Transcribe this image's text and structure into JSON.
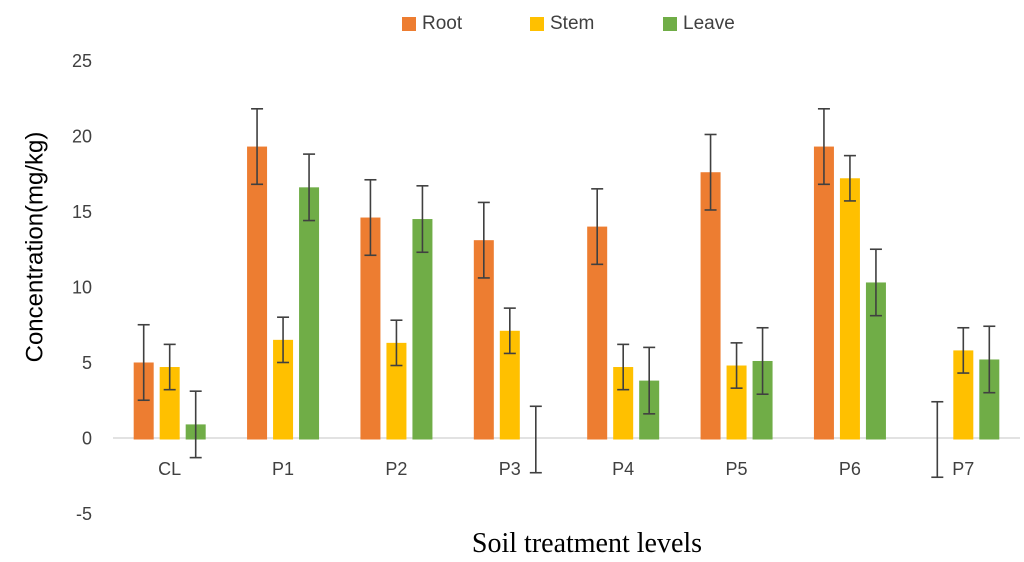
{
  "chart_data": {
    "type": "bar",
    "title": "",
    "xlabel": "Soil treatment levels",
    "ylabel": "Concentration(mg/kg)",
    "ylim": [
      -5,
      25
    ],
    "yticks": [
      -5,
      0,
      5,
      10,
      15,
      20,
      25
    ],
    "grid": false,
    "legend_position": "top",
    "categories": [
      "CL",
      "P1",
      "P2",
      "P3",
      "P4",
      "P5",
      "P6",
      "P7"
    ],
    "series": [
      {
        "name": "Root",
        "color": "#ED7D31",
        "values": [
          5.1,
          19.4,
          14.7,
          13.2,
          14.1,
          17.7,
          19.4,
          0
        ],
        "errors": [
          2.5,
          2.5,
          2.5,
          2.5,
          2.5,
          2.5,
          2.5,
          2.5
        ]
      },
      {
        "name": "Stem",
        "color": "#FFC000",
        "values": [
          4.8,
          6.6,
          6.4,
          7.2,
          4.8,
          4.9,
          17.3,
          5.9
        ],
        "errors": [
          1.5,
          1.5,
          1.5,
          1.5,
          1.5,
          1.5,
          1.5,
          1.5
        ]
      },
      {
        "name": "Leave",
        "color": "#70AD47",
        "values": [
          1.0,
          16.7,
          14.6,
          0,
          3.9,
          5.2,
          10.4,
          5.3
        ],
        "errors": [
          2.2,
          2.2,
          2.2,
          2.2,
          2.2,
          2.2,
          2.2,
          2.2
        ]
      }
    ]
  }
}
